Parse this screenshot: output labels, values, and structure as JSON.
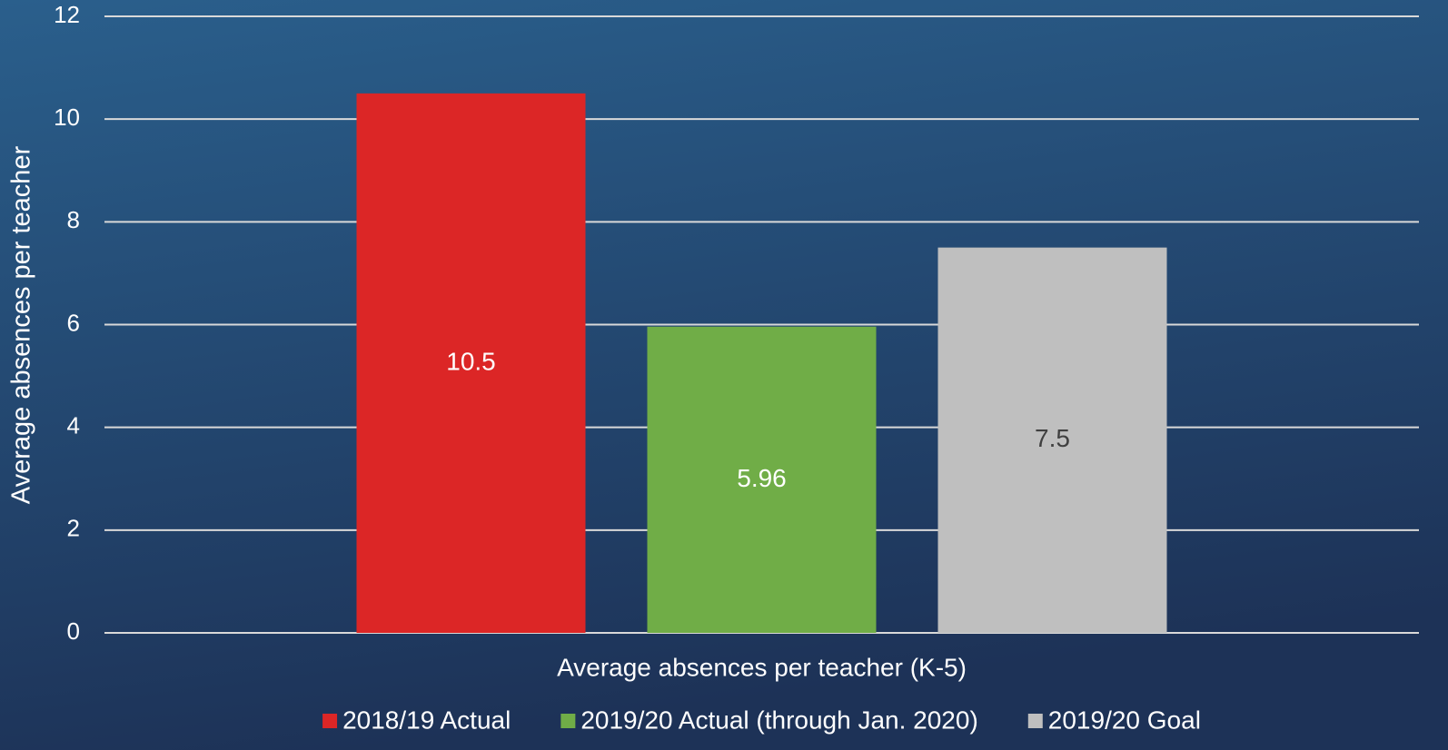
{
  "chart_data": {
    "type": "bar",
    "categories": [
      "Average absences per teacher (K-5)"
    ],
    "y_label": "Average absences per teacher",
    "series": [
      {
        "name": "2018/19 Actual",
        "color": "#dc2626",
        "label_color": "#ffffff",
        "values": [
          10.5
        ]
      },
      {
        "name": "2019/20 Actual (through Jan. 2020)",
        "color": "#70ad47",
        "label_color": "#ffffff",
        "values": [
          5.96
        ]
      },
      {
        "name": "2019/20 Goal",
        "color": "#bfbfbf",
        "label_color": "#404040",
        "values": [
          7.5
        ]
      }
    ],
    "ylim": [
      0,
      12
    ],
    "yticks": [
      0,
      2,
      4,
      6,
      8,
      10,
      12
    ],
    "grid": true,
    "legend": "bottom"
  }
}
